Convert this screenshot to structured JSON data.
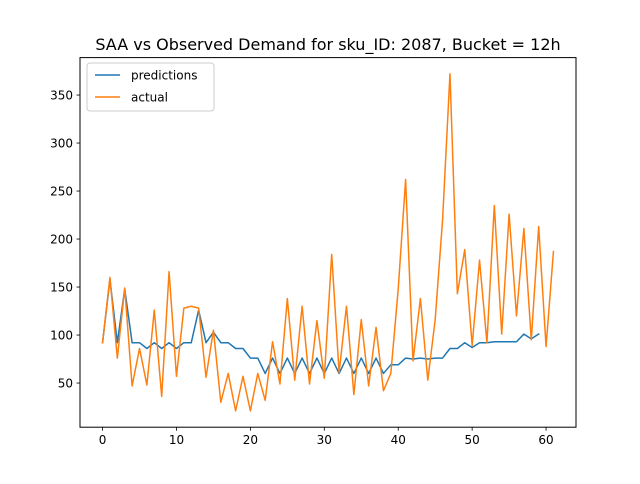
{
  "chart_data": {
    "type": "line",
    "title": "SAA vs Observed Demand for sku_ID: 2087, Bucket = 12h",
    "xlabel": "",
    "ylabel": "",
    "xlim": [
      -3.05,
      64.05
    ],
    "ylim": [
      4.0,
      389.0
    ],
    "xticks": [
      0,
      10,
      20,
      30,
      40,
      50,
      60
    ],
    "yticks": [
      50,
      100,
      150,
      200,
      250,
      300,
      350
    ],
    "grid": false,
    "legend": "upper left",
    "series": [
      {
        "name": "predictions",
        "color": "#1f77b4",
        "x": [
          0,
          1,
          2,
          3,
          4,
          5,
          6,
          7,
          8,
          9,
          10,
          11,
          12,
          13,
          14,
          15,
          16,
          17,
          18,
          19,
          20,
          21,
          22,
          23,
          24,
          25,
          26,
          27,
          28,
          29,
          30,
          31,
          32,
          33,
          34,
          35,
          36,
          37,
          38,
          39,
          40,
          41,
          42,
          43,
          44,
          45,
          46,
          47,
          48,
          49,
          50,
          51,
          52,
          53,
          54,
          55,
          56,
          57,
          58,
          59
        ],
        "values": [
          92,
          158,
          92,
          148,
          92,
          92,
          86,
          92,
          86,
          92,
          86,
          92,
          92,
          126,
          92,
          103,
          92,
          92,
          86,
          86,
          76,
          76,
          60,
          76,
          60,
          76,
          60,
          76,
          60,
          76,
          60,
          76,
          60,
          76,
          60,
          76,
          60,
          76,
          60,
          69,
          69,
          76,
          75,
          76,
          75,
          76,
          76,
          86,
          86,
          92,
          87,
          92,
          92,
          93,
          93,
          93,
          93,
          101,
          96,
          101
        ]
      },
      {
        "name": "actual",
        "color": "#ff7f0e",
        "x": [
          0,
          1,
          2,
          3,
          4,
          5,
          6,
          7,
          8,
          9,
          10,
          11,
          12,
          13,
          14,
          15,
          16,
          17,
          18,
          19,
          20,
          21,
          22,
          23,
          24,
          25,
          26,
          27,
          28,
          29,
          30,
          31,
          32,
          33,
          34,
          35,
          36,
          37,
          38,
          39,
          40,
          41,
          42,
          43,
          44,
          45,
          46,
          47,
          48,
          49,
          50,
          51,
          52,
          53,
          54,
          55,
          56,
          57,
          58,
          59,
          60,
          61
        ],
        "values": [
          92,
          160,
          76,
          149,
          47,
          86,
          48,
          126,
          36,
          166,
          57,
          128,
          130,
          128,
          56,
          105,
          30,
          60,
          21,
          57,
          21,
          60,
          32,
          93,
          49,
          138,
          53,
          130,
          49,
          115,
          55,
          184,
          61,
          130,
          38,
          116,
          47,
          108,
          42,
          60,
          148,
          262,
          73,
          138,
          53,
          116,
          220,
          372,
          143,
          189,
          89,
          178,
          92,
          235,
          101,
          226,
          120,
          211,
          95,
          213,
          88,
          187
        ]
      }
    ]
  }
}
